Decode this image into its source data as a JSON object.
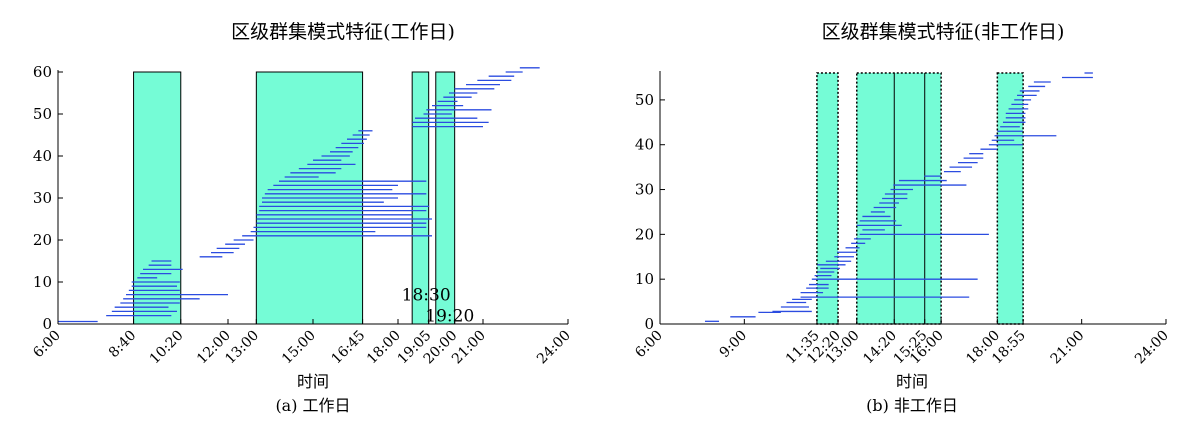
{
  "colors": {
    "highlight": "#75fcd6",
    "segment": "#2b4ce0",
    "axis": "#000000"
  },
  "chart_data": [
    {
      "type": "interval",
      "title": "区级群集模式特征(工作日)",
      "xlabel": "时间",
      "caption": "(a) 工作日",
      "xlim": [
        6,
        24
      ],
      "ylim": [
        0,
        60
      ],
      "yticks": [
        0,
        10,
        20,
        30,
        40,
        50,
        60
      ],
      "xticks": [
        {
          "h": 6,
          "label": "6:00"
        },
        {
          "h": 8.667,
          "label": "8:40"
        },
        {
          "h": 10.333,
          "label": "10:20"
        },
        {
          "h": 12,
          "label": "12:00"
        },
        {
          "h": 13,
          "label": "13:00"
        },
        {
          "h": 15,
          "label": "15:00"
        },
        {
          "h": 16.75,
          "label": "16:45"
        },
        {
          "h": 18,
          "label": "18:00"
        },
        {
          "h": 19.083,
          "label": "19:05"
        },
        {
          "h": 20,
          "label": "20:00"
        },
        {
          "h": 21,
          "label": "21:00"
        },
        {
          "h": 24,
          "label": "24:00"
        }
      ],
      "highlight_style": "solid",
      "highlights": [
        {
          "start": 8.667,
          "end": 10.333
        },
        {
          "start": 13.0,
          "end": 16.75
        },
        {
          "start": 18.5,
          "end": 19.083
        },
        {
          "start": 19.333,
          "end": 20.0
        }
      ],
      "annotations": [
        {
          "text": "18:30",
          "x": 18.5,
          "y": 7
        },
        {
          "text": "19:20",
          "x": 19.333,
          "y": 2
        }
      ],
      "segments": [
        [
          6.0,
          7.4,
          0.6
        ],
        [
          7.7,
          10.0,
          2
        ],
        [
          7.9,
          10.2,
          3
        ],
        [
          8.0,
          9.9,
          4
        ],
        [
          8.2,
          10.3,
          5
        ],
        [
          8.3,
          11.0,
          6
        ],
        [
          8.4,
          12.0,
          7
        ],
        [
          8.5,
          10.3,
          8
        ],
        [
          8.6,
          10.2,
          9
        ],
        [
          8.6,
          10.3,
          10
        ],
        [
          8.8,
          9.5,
          11
        ],
        [
          8.9,
          10.0,
          12
        ],
        [
          9.0,
          10.4,
          13
        ],
        [
          9.2,
          10.0,
          14
        ],
        [
          9.3,
          10.0,
          15
        ],
        [
          11.0,
          11.8,
          16
        ],
        [
          11.4,
          12.2,
          17
        ],
        [
          11.6,
          12.4,
          18
        ],
        [
          11.9,
          12.6,
          19
        ],
        [
          12.2,
          12.9,
          20
        ],
        [
          12.5,
          19.2,
          21
        ],
        [
          12.8,
          17.2,
          22
        ],
        [
          12.9,
          19.0,
          23
        ],
        [
          13.0,
          19.0,
          24
        ],
        [
          13.0,
          19.2,
          25
        ],
        [
          13.0,
          18.5,
          26
        ],
        [
          13.1,
          19.0,
          27
        ],
        [
          13.1,
          19.1,
          28
        ],
        [
          13.2,
          17.5,
          29
        ],
        [
          13.2,
          18.0,
          30
        ],
        [
          13.3,
          19.0,
          31
        ],
        [
          13.4,
          17.8,
          32
        ],
        [
          13.6,
          18.0,
          33
        ],
        [
          13.8,
          19.0,
          34
        ],
        [
          14.0,
          15.2,
          35
        ],
        [
          14.2,
          15.8,
          36
        ],
        [
          14.5,
          16.0,
          37
        ],
        [
          14.8,
          16.5,
          38
        ],
        [
          15.0,
          16.0,
          39
        ],
        [
          15.3,
          16.3,
          40
        ],
        [
          15.6,
          16.4,
          41
        ],
        [
          15.8,
          16.6,
          42
        ],
        [
          16.0,
          16.8,
          43
        ],
        [
          16.2,
          16.9,
          44
        ],
        [
          16.4,
          17.0,
          45
        ],
        [
          16.6,
          17.1,
          46
        ],
        [
          18.5,
          21.0,
          47
        ],
        [
          18.5,
          21.2,
          48
        ],
        [
          18.6,
          20.8,
          49
        ],
        [
          18.9,
          19.9,
          50
        ],
        [
          19.0,
          21.3,
          51
        ],
        [
          19.2,
          20.3,
          52
        ],
        [
          19.4,
          20.1,
          53
        ],
        [
          19.6,
          20.6,
          54
        ],
        [
          19.8,
          20.8,
          55
        ],
        [
          20.0,
          21.4,
          56
        ],
        [
          20.4,
          21.6,
          57
        ],
        [
          20.8,
          22.0,
          58
        ],
        [
          21.2,
          22.1,
          59
        ],
        [
          21.8,
          22.4,
          60
        ],
        [
          22.3,
          23.0,
          61
        ]
      ]
    },
    {
      "type": "interval",
      "title": "区级群集模式特征(非工作日)",
      "xlabel": "时间",
      "caption": "(b) 非工作日",
      "xlim": [
        6,
        24
      ],
      "ylim": [
        0,
        56
      ],
      "yticks": [
        0,
        10,
        20,
        30,
        40,
        50
      ],
      "xticks": [
        {
          "h": 6,
          "label": "6:00"
        },
        {
          "h": 9,
          "label": "9:00"
        },
        {
          "h": 11.583,
          "label": "11:35"
        },
        {
          "h": 12.333,
          "label": "12:20"
        },
        {
          "h": 13,
          "label": "13:00"
        },
        {
          "h": 14.333,
          "label": "14:20"
        },
        {
          "h": 15.417,
          "label": "15:25"
        },
        {
          "h": 16,
          "label": "16:00"
        },
        {
          "h": 18,
          "label": "18:00"
        },
        {
          "h": 18.917,
          "label": "18:55"
        },
        {
          "h": 21,
          "label": "21:00"
        },
        {
          "h": 24,
          "label": "24:00"
        }
      ],
      "highlight_style": "dotted",
      "highlights": [
        {
          "start": 11.583,
          "end": 12.333
        },
        {
          "start": 13.0,
          "end": 16.0
        },
        {
          "start": 18.0,
          "end": 18.917
        }
      ],
      "dividers": [
        14.333,
        15.417
      ],
      "segments": [
        [
          7.6,
          8.1,
          0.6
        ],
        [
          8.5,
          9.4,
          1.6
        ],
        [
          9.5,
          10.3,
          2.6
        ],
        [
          10.0,
          11.4,
          2.8
        ],
        [
          10.3,
          11.3,
          3.8
        ],
        [
          10.5,
          11.2,
          4.8
        ],
        [
          10.7,
          11.4,
          5.5
        ],
        [
          11.0,
          17.0,
          6
        ],
        [
          11.0,
          11.8,
          7
        ],
        [
          11.2,
          12.0,
          8
        ],
        [
          11.3,
          12.0,
          8.8
        ],
        [
          11.4,
          17.3,
          10
        ],
        [
          11.5,
          12.1,
          10.8
        ],
        [
          11.6,
          12.2,
          11.6
        ],
        [
          11.7,
          12.4,
          12.4
        ],
        [
          11.6,
          12.6,
          13.2
        ],
        [
          11.9,
          12.8,
          14
        ],
        [
          12.2,
          12.9,
          15
        ],
        [
          12.3,
          13.0,
          16
        ],
        [
          12.6,
          13.1,
          17
        ],
        [
          12.8,
          13.3,
          18
        ],
        [
          12.9,
          13.5,
          19
        ],
        [
          13.1,
          17.7,
          20
        ],
        [
          13.2,
          14.0,
          21
        ],
        [
          13.0,
          14.6,
          22
        ],
        [
          13.1,
          14.4,
          23
        ],
        [
          13.2,
          14.2,
          24
        ],
        [
          13.5,
          14.0,
          25
        ],
        [
          13.6,
          14.4,
          26
        ],
        [
          13.8,
          14.5,
          27
        ],
        [
          13.9,
          14.8,
          28
        ],
        [
          14.0,
          14.8,
          29
        ],
        [
          14.2,
          15.0,
          30
        ],
        [
          14.3,
          16.9,
          31
        ],
        [
          14.5,
          16.2,
          32
        ],
        [
          15.4,
          16.0,
          33
        ],
        [
          16.1,
          16.7,
          34
        ],
        [
          16.3,
          17.1,
          35
        ],
        [
          16.6,
          17.3,
          36
        ],
        [
          16.8,
          17.5,
          37
        ],
        [
          17.0,
          17.5,
          38
        ],
        [
          17.4,
          18.0,
          39
        ],
        [
          17.7,
          18.9,
          40
        ],
        [
          17.8,
          18.6,
          41
        ],
        [
          17.9,
          20.1,
          42
        ],
        [
          18.0,
          18.9,
          43
        ],
        [
          18.1,
          18.8,
          44
        ],
        [
          18.2,
          19.0,
          45
        ],
        [
          18.3,
          19.0,
          46
        ],
        [
          18.3,
          19.0,
          47
        ],
        [
          18.4,
          19.1,
          48
        ],
        [
          18.5,
          19.1,
          49
        ],
        [
          18.6,
          19.2,
          50
        ],
        [
          18.7,
          19.4,
          51
        ],
        [
          18.8,
          19.5,
          52
        ],
        [
          19.1,
          19.7,
          53
        ],
        [
          19.3,
          19.9,
          54
        ],
        [
          20.3,
          21.4,
          55
        ],
        [
          21.1,
          21.4,
          56
        ]
      ]
    }
  ]
}
